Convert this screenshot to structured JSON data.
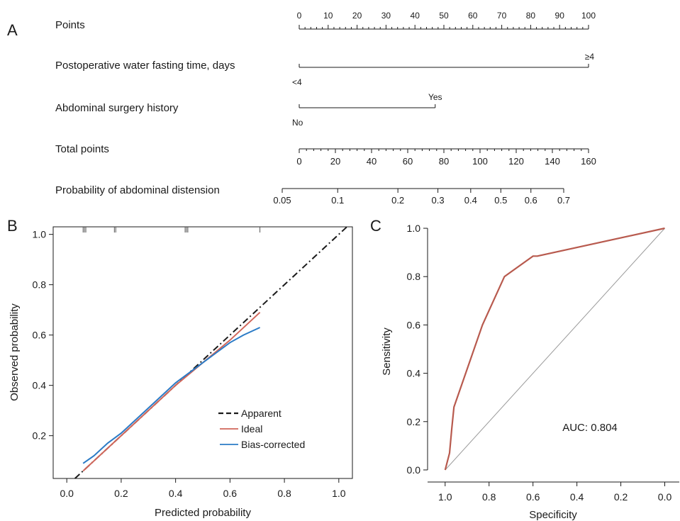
{
  "panels": {
    "a": "A",
    "b": "B",
    "c": "C"
  },
  "chart_data": [
    {
      "type": "nomogram",
      "rows": [
        {
          "label": "Points",
          "kind": "points",
          "min": 0,
          "max": 100,
          "ticks": [
            0,
            10,
            20,
            30,
            40,
            50,
            60,
            70,
            80,
            90,
            100
          ]
        },
        {
          "label": "Postoperative water fasting time, days",
          "kind": "variable",
          "levels": [
            {
              "name": "<4",
              "points": 0
            },
            {
              "name": "≥4",
              "points": 100
            }
          ]
        },
        {
          "label": "Abdominal surgery history",
          "kind": "variable",
          "levels": [
            {
              "name": "No",
              "points": 0
            },
            {
              "name": "Yes",
              "points": 47
            }
          ]
        },
        {
          "label": "Total points",
          "kind": "total",
          "min": 0,
          "max": 160,
          "ticks": [
            0,
            20,
            40,
            60,
            80,
            100,
            120,
            140,
            160
          ]
        },
        {
          "label": "Probability of abdominal distension",
          "kind": "probability",
          "ticks": [
            0.05,
            0.1,
            0.2,
            0.3,
            0.4,
            0.5,
            0.6,
            0.7
          ],
          "tick_labels": [
            "0.05",
            "0.1",
            "0.2",
            "0.3",
            "0.4",
            "0.5",
            "0.6",
            "0.7"
          ]
        }
      ]
    },
    {
      "type": "line",
      "xlabel": "Predicted probability",
      "ylabel": "Observed probability",
      "xlim": [
        -0.05,
        1.05
      ],
      "ylim": [
        0.03,
        1.03
      ],
      "xticks": [
        0.0,
        0.2,
        0.4,
        0.6,
        0.8,
        1.0
      ],
      "xtick_labels": [
        "0.0",
        "0.2",
        "0.4",
        "0.6",
        "0.8",
        "1.0"
      ],
      "yticks": [
        0.2,
        0.4,
        0.6,
        0.8,
        1.0
      ],
      "ytick_labels": [
        "0.2",
        "0.4",
        "0.6",
        "0.8",
        "1.0"
      ],
      "rug": [
        0.06,
        0.065,
        0.07,
        0.175,
        0.18,
        0.435,
        0.44,
        0.445,
        0.71
      ],
      "legend_position": "bottom-right",
      "series": [
        {
          "name": "Apparent",
          "color": "#1a1a1a",
          "dash": "dashed",
          "x": [
            0.03,
            1.03
          ],
          "y": [
            0.03,
            1.03
          ]
        },
        {
          "name": "Ideal",
          "color": "#d0665a",
          "dash": "solid",
          "x": [
            0.06,
            0.2,
            0.4,
            0.6,
            0.71
          ],
          "y": [
            0.06,
            0.2,
            0.4,
            0.58,
            0.69
          ]
        },
        {
          "name": "Bias-corrected",
          "color": "#2b7bc6",
          "dash": "solid",
          "x": [
            0.06,
            0.1,
            0.15,
            0.2,
            0.3,
            0.4,
            0.5,
            0.55,
            0.6,
            0.65,
            0.71
          ],
          "y": [
            0.09,
            0.12,
            0.17,
            0.21,
            0.31,
            0.41,
            0.49,
            0.53,
            0.57,
            0.6,
            0.63
          ]
        }
      ]
    },
    {
      "type": "line",
      "xlabel": "Specificity",
      "ylabel": "Sensitivity",
      "xlim": [
        1.08,
        -0.05
      ],
      "ylim": [
        -0.05,
        1.05
      ],
      "xticks": [
        1.0,
        0.8,
        0.6,
        0.4,
        0.2,
        0.0
      ],
      "xtick_labels": [
        "1.0",
        "0.8",
        "0.6",
        "0.4",
        "0.2",
        "0.0"
      ],
      "yticks": [
        0.0,
        0.2,
        0.4,
        0.6,
        0.8,
        1.0
      ],
      "ytick_labels": [
        "0.0",
        "0.2",
        "0.4",
        "0.6",
        "0.8",
        "1.0"
      ],
      "annotation": "AUC: 0.804",
      "series": [
        {
          "color": "#b85a4e",
          "x": [
            1.0,
            0.98,
            0.97,
            0.96,
            0.83,
            0.73,
            0.6,
            0.58,
            0.0
          ],
          "y": [
            0.0,
            0.07,
            0.17,
            0.26,
            0.6,
            0.8,
            0.885,
            0.885,
            1.0
          ]
        },
        {
          "color": "#9a9a9a",
          "x": [
            1.0,
            0.0
          ],
          "y": [
            0.0,
            1.0
          ]
        }
      ]
    }
  ]
}
